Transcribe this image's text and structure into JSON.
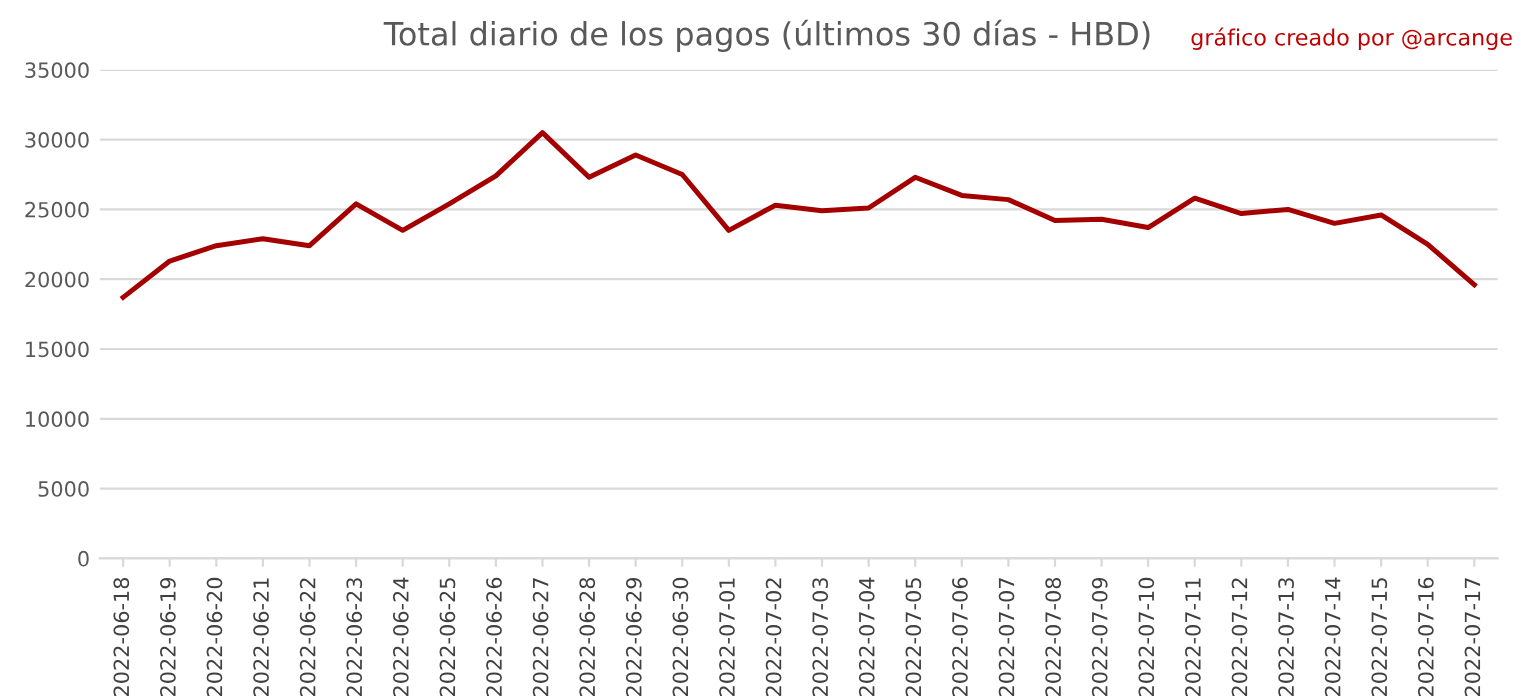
{
  "chart_data": {
    "type": "line",
    "title": "Total diario de los pagos (últimos 30 días - HBD)",
    "annotations": [
      "gráfico creado por @arcange"
    ],
    "categories": [
      "2022-06-18",
      "2022-06-19",
      "2022-06-20",
      "2022-06-21",
      "2022-06-22",
      "2022-06-23",
      "2022-06-24",
      "2022-06-25",
      "2022-06-26",
      "2022-06-27",
      "2022-06-28",
      "2022-06-29",
      "2022-06-30",
      "2022-07-01",
      "2022-07-02",
      "2022-07-03",
      "2022-07-04",
      "2022-07-05",
      "2022-07-06",
      "2022-07-07",
      "2022-07-08",
      "2022-07-09",
      "2022-07-10",
      "2022-07-11",
      "2022-07-12",
      "2022-07-13",
      "2022-07-14",
      "2022-07-15",
      "2022-07-16",
      "2022-07-17"
    ],
    "series": [
      {
        "color": "#a50000",
        "values": [
          18700,
          21300,
          22400,
          22900,
          22400,
          25400,
          23500,
          25400,
          27400,
          30500,
          27300,
          28900,
          27500,
          23500,
          25300,
          24900,
          25100,
          27300,
          26000,
          25700,
          24200,
          24300,
          23700,
          25800,
          24700,
          25000,
          24000,
          24600,
          22500,
          19600
        ]
      }
    ],
    "ylim": [
      0,
      35000
    ],
    "yticks": [
      0,
      5000,
      10000,
      15000,
      20000,
      25000,
      30000,
      35000
    ],
    "grid": "y",
    "legend": false,
    "marker": "none",
    "line_style": "solid"
  }
}
